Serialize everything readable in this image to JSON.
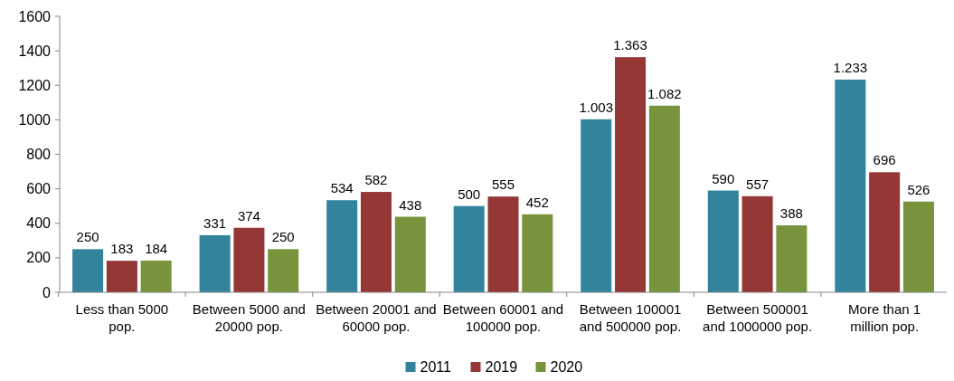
{
  "chart_data": {
    "type": "bar",
    "categories": [
      "Less than 5000 pop.",
      "Between 5000 and 20000 pop.",
      "Between 20001 and 60000 pop.",
      "Between 60001 and 100000 pop.",
      "Between 100001 and 500000 pop.",
      "Between 500001 and 1000000 pop.",
      "More than 1 million pop."
    ],
    "series": [
      {
        "name": "2011",
        "color": "#31849b",
        "values": [
          250,
          331,
          534,
          500,
          1003,
          590,
          1233
        ],
        "value_labels": [
          "250",
          "331",
          "534",
          "500",
          "1.003",
          "590",
          "1.233"
        ]
      },
      {
        "name": "2019",
        "color": "#953735",
        "values": [
          183,
          374,
          582,
          555,
          1363,
          557,
          696
        ],
        "value_labels": [
          "183",
          "374",
          "582",
          "555",
          "1.363",
          "557",
          "696"
        ]
      },
      {
        "name": "2020",
        "color": "#77933c",
        "values": [
          184,
          250,
          438,
          452,
          1082,
          388,
          526
        ],
        "value_labels": [
          "184",
          "250",
          "438",
          "452",
          "1.082",
          "388",
          "526"
        ]
      }
    ],
    "ylim": [
      0,
      1600
    ],
    "yticks": [
      0,
      200,
      400,
      600,
      800,
      1000,
      1200,
      1400,
      1600
    ],
    "legend": "bottom"
  }
}
